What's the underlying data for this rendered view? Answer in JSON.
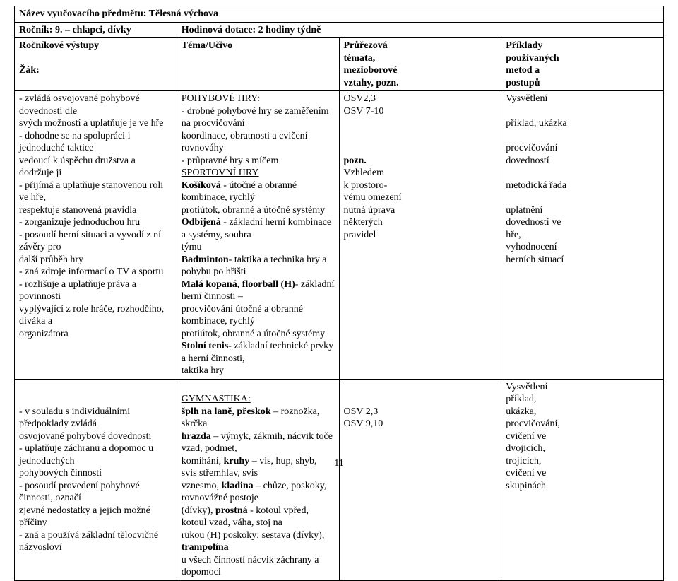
{
  "header": {
    "title_label": "Název vyučovacího předmětu:",
    "title_value": "Tělesná výchova",
    "grade_label": "Ročník: 9. – chlapci, dívky",
    "time_allocation": "Hodinová dotace: 2 hodiny týdně",
    "col1_h1": "Ročníkové výstupy",
    "col1_h2": "Žák:",
    "col2_h": "Téma/Učivo",
    "col3_h1": "Průřezová",
    "col3_h2": "témata,",
    "col3_h3": "mezioborové",
    "col3_h4": "vztahy, pozn.",
    "col4_h1": "Příklady",
    "col4_h2": "používaných",
    "col4_h3": "metod a",
    "col4_h4": "postupů"
  },
  "row1": {
    "col1": {
      "l1": "- zvládá osvojované pohybové dovednosti dle",
      "l2": "svých možností a uplatňuje je ve hře",
      "l3": "- dohodne se na spolupráci i jednoduché taktice",
      "l4": "vedoucí k úspěchu družstva a dodržuje ji",
      "l5": "- přijímá a uplatňuje stanovenou roli ve hře,",
      "l6": "respektuje stanovená pravidla",
      "l7": "- zorganizuje jednoduchou hru",
      "l8": "- posoudí herní situaci a vyvodí z ní závěry pro",
      "l9": "další průběh hry",
      "l10": "- zná zdroje informací o TV a sportu",
      "l11": "- rozlišuje a uplatňuje práva a povinnosti",
      "l12": "vyplývající z role hráče, rozhodčího, diváka a",
      "l13": "organizátora"
    },
    "col2": {
      "h1": "POHYBOVÉ HRY:",
      "l1": "- drobné pohybové hry se zaměřením na procvičování",
      "l2": "koordinace, obratnosti a cvičení rovnováhy",
      "l3": "- průpravné hry s míčem",
      "h2": "SPORTOVNÍ HRY",
      "l4a": "Košíková",
      "l4b": " - útočné a obranné kombinace, rychlý",
      "l5": "protiútok, obranné a útočné systémy",
      "l6a": "Odbíjená",
      "l6b": " - základní herní kombinace a systémy, souhra",
      "l7": "týmu",
      "l8a": "Badminton",
      "l8b": "- taktika a technika hry a pohybu po hřišti",
      "l9a": "Malá kopaná, floorball (H)",
      "l9b": "- základní herní činnosti –",
      "l10": "procvičování útočné a obranné kombinace, rychlý",
      "l11": "protiútok, obranné a útočné systémy",
      "l12a": "Stolní tenis",
      "l12b": "- základní technické prvky a herní činnosti,",
      "l13": "taktika hry"
    },
    "col3": {
      "l1": "OSV2,3",
      "l2": "OSV 7-10",
      "l3": "pozn.",
      "l4": "Vzhledem",
      "l5": "k prostoro-",
      "l6": "vému omezení",
      "l7": "nutná úprava",
      "l8": "některých",
      "l9": "pravidel"
    },
    "col4": {
      "l1": "Vysvětlení",
      "l2": "příklad, ukázka",
      "l3": "procvičování",
      "l4": "dovedností",
      "l5": "metodická řada",
      "l6": "uplatnění",
      "l7": "dovedností ve",
      "l8": "hře,",
      "l9": "vyhodnocení",
      "l10": "herních situací"
    }
  },
  "row2": {
    "col1": {
      "l1": "- v souladu s individuálními předpoklady zvládá",
      "l2": "osvojované pohybové dovednosti",
      "l3": "- uplatňuje záchranu a dopomoc u jednoduchých",
      "l4": "pohybových činností",
      "l5": "- posoudí provedení pohybové činnosti, označí",
      "l6": "zjevné nedostatky a jejich možné příčiny",
      "l7": "- zná a používá základní tělocvičné názvosloví"
    },
    "col2": {
      "h1": "GYMNASTIKA:",
      "l1a": "šplh na laně",
      "l1b": ", ",
      "l1c": "přeskok",
      "l1d": " – roznožka, skrčka",
      "l2a": "hrazda",
      "l2b": " – výmyk, zákmih, nácvik toče vzad, podmet,",
      "l3a": "komíhání, ",
      "l3b": "kruhy",
      "l3c": " – vis, hup, shyb, svis střemhlav, svis",
      "l4a": "vznesmo, ",
      "l4b": "kladina",
      "l4c": " – chůze, poskoky, rovnovážné postoje",
      "l5a": "(dívky), ",
      "l5b": "prostná",
      "l5c": " - kotoul vpřed, kotoul vzad, váha, stoj na",
      "l6a": "rukou (H) poskoky; sestava (dívky), ",
      "l6b": "trampolína",
      "l7": "u všech činností nácvik záchrany a dopomoci"
    },
    "col3": {
      "l1": "OSV 2,3",
      "l2": "OSV 9,10"
    },
    "col4": {
      "l1": "Vysvětlení",
      "l2": "příklad,",
      "l3": "ukázka,",
      "l4": "procvičování,",
      "l5": "cvičení ve",
      "l6": "dvojicích,",
      "l7": "trojicích,",
      "l8": "cvičení ve",
      "l9": "skupinách"
    }
  },
  "page_number": "11"
}
